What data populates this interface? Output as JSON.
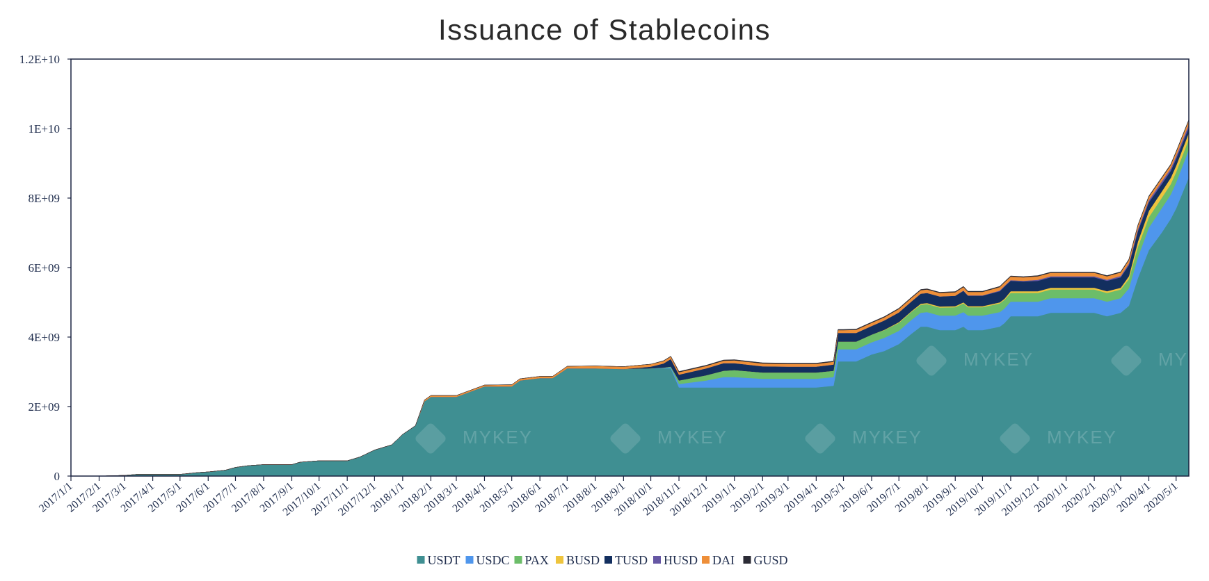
{
  "chart_data": {
    "type": "area",
    "stacked": true,
    "title": "Issuance of Stablecoins",
    "xlabel": "",
    "ylabel": "",
    "ylim": [
      0,
      12000000000
    ],
    "y_ticks": [
      {
        "value": 0,
        "label": "0"
      },
      {
        "value": 2000000000,
        "label": "2E+09"
      },
      {
        "value": 4000000000,
        "label": "4E+09"
      },
      {
        "value": 6000000000,
        "label": "6E+09"
      },
      {
        "value": 8000000000,
        "label": "8E+09"
      },
      {
        "value": 10000000000,
        "label": "1E+10"
      },
      {
        "value": 12000000000,
        "label": "1.2E+10"
      }
    ],
    "x_ticks": [
      "2017/1/1",
      "2017/2/1",
      "2017/3/1",
      "2017/4/1",
      "2017/5/1",
      "2017/6/1",
      "2017/7/1",
      "2017/8/1",
      "2017/9/1",
      "2017/10/1",
      "2017/11/1",
      "2017/12/1",
      "2018/1/1",
      "2018/2/1",
      "2018/3/1",
      "2018/4/1",
      "2018/5/1",
      "2018/6/1",
      "2018/7/1",
      "2018/8/1",
      "2018/9/1",
      "2018/10/1",
      "2018/11/1",
      "2018/12/1",
      "2019/1/1",
      "2019/2/1",
      "2019/3/1",
      "2019/4/1",
      "2019/5/1",
      "2019/6/1",
      "2019/7/1",
      "2019/8/1",
      "2019/9/1",
      "2019/10/1",
      "2019/11/1",
      "2019/12/1",
      "2020/1/1",
      "2020/2/1",
      "2020/3/1",
      "2020/4/1",
      "2020/5/1"
    ],
    "x_range": [
      "2017/1/1",
      "2020/5/15"
    ],
    "grid": false,
    "legend_position": "bottom",
    "x": [
      "2017/1/1",
      "2017/2/1",
      "2017/3/1",
      "2017/3/15",
      "2017/4/1",
      "2017/5/1",
      "2017/5/20",
      "2017/6/1",
      "2017/6/20",
      "2017/7/1",
      "2017/7/15",
      "2017/8/1",
      "2017/9/1",
      "2017/9/10",
      "2017/10/1",
      "2017/11/1",
      "2017/11/15",
      "2017/12/1",
      "2017/12/20",
      "2018/1/1",
      "2018/1/15",
      "2018/1/25",
      "2018/2/1",
      "2018/3/1",
      "2018/4/1",
      "2018/5/1",
      "2018/5/10",
      "2018/6/1",
      "2018/6/15",
      "2018/7/1",
      "2018/8/1",
      "2018/9/1",
      "2018/10/1",
      "2018/10/15",
      "2018/10/23",
      "2018/11/1",
      "2018/12/1",
      "2018/12/20",
      "2019/1/1",
      "2019/2/1",
      "2019/3/1",
      "2019/4/1",
      "2019/4/20",
      "2019/4/25",
      "2019/5/1",
      "2019/5/15",
      "2019/6/1",
      "2019/6/15",
      "2019/7/1",
      "2019/7/15",
      "2019/7/25",
      "2019/8/1",
      "2019/8/15",
      "2019/9/1",
      "2019/9/10",
      "2019/9/15",
      "2019/10/1",
      "2019/10/20",
      "2019/10/25",
      "2019/11/1",
      "2019/11/15",
      "2019/12/1",
      "2019/12/15",
      "2020/1/1",
      "2020/2/1",
      "2020/2/15",
      "2020/3/1",
      "2020/3/10",
      "2020/3/20",
      "2020/4/1",
      "2020/4/15",
      "2020/4/25",
      "2020/5/1",
      "2020/5/15"
    ],
    "series": [
      {
        "name": "USDT",
        "color": "#3f8f92",
        "values": [
          0.0,
          0.0,
          0.02,
          0.05,
          0.05,
          0.05,
          0.1,
          0.12,
          0.17,
          0.25,
          0.3,
          0.33,
          0.33,
          0.4,
          0.44,
          0.44,
          0.55,
          0.75,
          0.9,
          1.2,
          1.45,
          2.15,
          2.28,
          2.28,
          2.58,
          2.58,
          2.75,
          2.82,
          2.82,
          3.1,
          3.1,
          3.08,
          3.1,
          3.1,
          3.1,
          2.55,
          2.55,
          2.55,
          2.55,
          2.55,
          2.55,
          2.55,
          2.6,
          3.3,
          3.3,
          3.3,
          3.5,
          3.6,
          3.8,
          4.1,
          4.3,
          4.3,
          4.2,
          4.2,
          4.3,
          4.2,
          4.2,
          4.3,
          4.4,
          4.6,
          4.6,
          4.6,
          4.7,
          4.7,
          4.7,
          4.6,
          4.7,
          4.9,
          5.7,
          6.5,
          7.0,
          7.4,
          7.7,
          8.6
        ]
      },
      {
        "name": "USDC",
        "color": "#4f96ec",
        "values": [
          0,
          0,
          0,
          0,
          0,
          0,
          0,
          0,
          0,
          0,
          0,
          0,
          0,
          0,
          0,
          0,
          0,
          0,
          0,
          0,
          0,
          0,
          0,
          0,
          0,
          0,
          0,
          0,
          0,
          0,
          0,
          0,
          0,
          0.01,
          0.03,
          0.1,
          0.2,
          0.3,
          0.3,
          0.25,
          0.25,
          0.25,
          0.25,
          0.35,
          0.35,
          0.35,
          0.35,
          0.38,
          0.38,
          0.4,
          0.4,
          0.42,
          0.42,
          0.42,
          0.42,
          0.42,
          0.42,
          0.42,
          0.42,
          0.42,
          0.42,
          0.42,
          0.42,
          0.42,
          0.42,
          0.42,
          0.42,
          0.5,
          0.6,
          0.65,
          0.7,
          0.7,
          0.75,
          0.8
        ]
      },
      {
        "name": "PAX",
        "color": "#6cbd69",
        "values": [
          0,
          0,
          0,
          0,
          0,
          0,
          0,
          0,
          0,
          0,
          0,
          0,
          0,
          0,
          0,
          0,
          0,
          0,
          0,
          0,
          0,
          0,
          0,
          0,
          0,
          0,
          0,
          0,
          0,
          0,
          0,
          0,
          0,
          0.01,
          0.02,
          0.1,
          0.15,
          0.18,
          0.2,
          0.18,
          0.18,
          0.18,
          0.18,
          0.22,
          0.22,
          0.22,
          0.22,
          0.22,
          0.23,
          0.23,
          0.23,
          0.23,
          0.23,
          0.24,
          0.25,
          0.24,
          0.24,
          0.25,
          0.25,
          0.25,
          0.25,
          0.25,
          0.25,
          0.25,
          0.25,
          0.25,
          0.25,
          0.27,
          0.3,
          0.3,
          0.3,
          0.3,
          0.3,
          0.3
        ]
      },
      {
        "name": "BUSD",
        "color": "#eec43d",
        "values": [
          0,
          0,
          0,
          0,
          0,
          0,
          0,
          0,
          0,
          0,
          0,
          0,
          0,
          0,
          0,
          0,
          0,
          0,
          0,
          0,
          0,
          0,
          0,
          0,
          0,
          0,
          0,
          0,
          0,
          0,
          0,
          0,
          0,
          0,
          0,
          0,
          0,
          0,
          0,
          0,
          0,
          0,
          0,
          0,
          0,
          0,
          0,
          0.01,
          0.02,
          0.02,
          0.03,
          0.03,
          0.03,
          0.03,
          0.03,
          0.03,
          0.03,
          0.03,
          0.03,
          0.05,
          0.05,
          0.05,
          0.05,
          0.05,
          0.05,
          0.05,
          0.05,
          0.08,
          0.15,
          0.18,
          0.18,
          0.18,
          0.18,
          0.18
        ]
      },
      {
        "name": "TUSD",
        "color": "#132f5f",
        "values": [
          0,
          0,
          0,
          0,
          0,
          0,
          0,
          0,
          0,
          0,
          0,
          0,
          0,
          0,
          0,
          0,
          0,
          0,
          0,
          0,
          0,
          0,
          0,
          0,
          0,
          0,
          0,
          0,
          0,
          0,
          0,
          0,
          0.05,
          0.12,
          0.22,
          0.17,
          0.2,
          0.22,
          0.2,
          0.18,
          0.17,
          0.17,
          0.18,
          0.25,
          0.25,
          0.25,
          0.25,
          0.27,
          0.28,
          0.28,
          0.29,
          0.29,
          0.29,
          0.3,
          0.33,
          0.3,
          0.3,
          0.32,
          0.35,
          0.3,
          0.28,
          0.3,
          0.3,
          0.3,
          0.3,
          0.3,
          0.3,
          0.32,
          0.3,
          0.25,
          0.22,
          0.2,
          0.2,
          0.15
        ]
      },
      {
        "name": "HUSD",
        "color": "#6657a4",
        "values": [
          0,
          0,
          0,
          0,
          0,
          0,
          0,
          0,
          0,
          0,
          0,
          0,
          0,
          0,
          0,
          0,
          0,
          0,
          0,
          0,
          0,
          0,
          0,
          0,
          0,
          0,
          0,
          0,
          0,
          0,
          0,
          0,
          0,
          0,
          0,
          0,
          0,
          0,
          0,
          0,
          0,
          0,
          0,
          0,
          0,
          0,
          0,
          0,
          0,
          0,
          0,
          0,
          0,
          0,
          0.01,
          0.01,
          0.01,
          0.02,
          0.02,
          0.02,
          0.02,
          0.03,
          0.03,
          0.03,
          0.03,
          0.03,
          0.04,
          0.05,
          0.06,
          0.06,
          0.07,
          0.07,
          0.08,
          0.09
        ]
      },
      {
        "name": "DAI",
        "color": "#ee8f39",
        "values": [
          0,
          0,
          0,
          0,
          0,
          0,
          0,
          0,
          0,
          0,
          0,
          0,
          0,
          0,
          0,
          0,
          0,
          0,
          0,
          0,
          0,
          0.04,
          0.04,
          0.04,
          0.04,
          0.05,
          0.05,
          0.05,
          0.05,
          0.06,
          0.07,
          0.07,
          0.07,
          0.07,
          0.07,
          0.07,
          0.07,
          0.07,
          0.08,
          0.08,
          0.08,
          0.08,
          0.08,
          0.08,
          0.08,
          0.09,
          0.09,
          0.09,
          0.1,
          0.1,
          0.1,
          0.1,
          0.1,
          0.1,
          0.1,
          0.1,
          0.1,
          0.1,
          0.1,
          0.1,
          0.1,
          0.1,
          0.1,
          0.1,
          0.1,
          0.1,
          0.1,
          0.1,
          0.1,
          0.1,
          0.1,
          0.1,
          0.11,
          0.12
        ]
      },
      {
        "name": "GUSD",
        "color": "#2b2b35",
        "values": [
          0,
          0,
          0,
          0,
          0,
          0,
          0,
          0,
          0,
          0,
          0,
          0,
          0,
          0,
          0,
          0,
          0,
          0,
          0,
          0,
          0,
          0,
          0,
          0,
          0,
          0,
          0,
          0,
          0,
          0,
          0,
          0,
          0,
          0.01,
          0.01,
          0.02,
          0.02,
          0.02,
          0.02,
          0.02,
          0.02,
          0.02,
          0.02,
          0.02,
          0.02,
          0.02,
          0.02,
          0.02,
          0.02,
          0.02,
          0.02,
          0.02,
          0.02,
          0.02,
          0.02,
          0.02,
          0.02,
          0.02,
          0.02,
          0.02,
          0.02,
          0.02,
          0.02,
          0.02,
          0.02,
          0.02,
          0.02,
          0.02,
          0.02,
          0.02,
          0.02,
          0.02,
          0.02,
          0.02
        ]
      }
    ],
    "values_unit_multiplier": 1000000000,
    "watermark": "MYKEY"
  }
}
